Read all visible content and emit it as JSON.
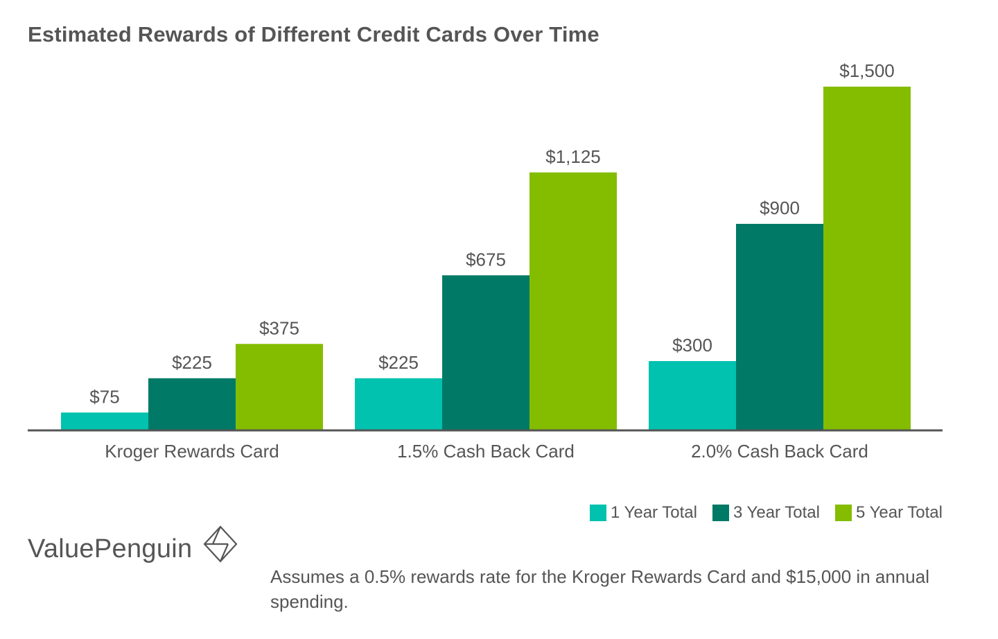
{
  "title": "Estimated Rewards of Different Credit Cards Over Time",
  "colors": {
    "axis": "#555555",
    "text": "#555555",
    "series": [
      "#00c2ae",
      "#007a66",
      "#84bd00"
    ]
  },
  "chart_data": {
    "type": "bar",
    "title": "Estimated Rewards of Different Credit Cards Over Time",
    "categories": [
      "Kroger Rewards Card",
      "1.5% Cash Back Card",
      "2.0% Cash Back Card"
    ],
    "series": [
      {
        "name": "1 Year Total",
        "values": [
          75,
          225,
          300
        ],
        "labels": [
          "$75",
          "$225",
          "$300"
        ]
      },
      {
        "name": "3 Year Total",
        "values": [
          225,
          675,
          900
        ],
        "labels": [
          "$225",
          "$675",
          "$900"
        ]
      },
      {
        "name": "5 Year Total",
        "values": [
          375,
          1125,
          1500
        ],
        "labels": [
          "$375",
          "$1,125",
          "$1,500"
        ]
      }
    ],
    "xlabel": "",
    "ylabel": "",
    "ylim": [
      0,
      1500
    ],
    "grid": false,
    "legend": "bottom-right"
  },
  "legend": {
    "items": [
      "1 Year Total",
      "3 Year Total",
      "5 Year Total"
    ]
  },
  "brand": {
    "name": "ValuePenguin",
    "logo_icon": "valuepenguin-logo-icon"
  },
  "footnote": "Assumes a 0.5% rewards rate for the Kroger Rewards Card and $15,000 in annual spending."
}
